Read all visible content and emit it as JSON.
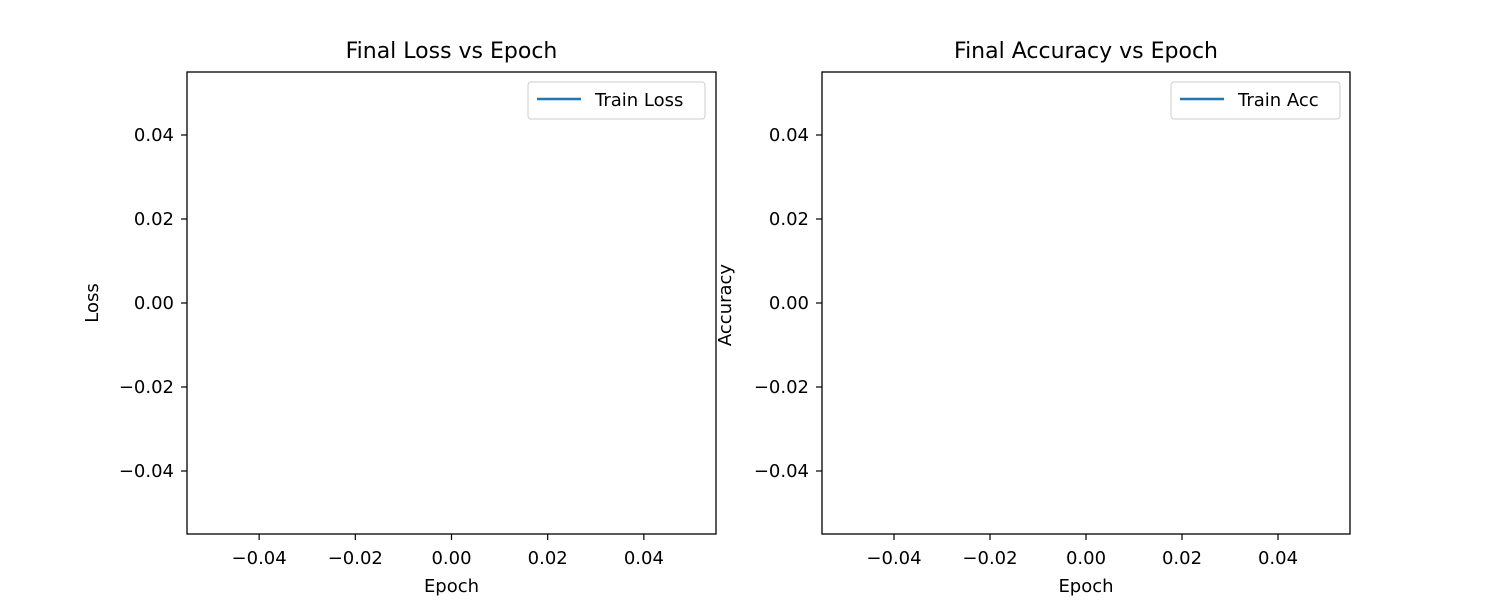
{
  "chart_data": [
    {
      "type": "line",
      "title": "Final Loss vs Epoch",
      "xlabel": "Epoch",
      "ylabel": "Loss",
      "xlim": [
        -0.055,
        0.055
      ],
      "ylim": [
        -0.055,
        0.055
      ],
      "x_ticks": [
        -0.04,
        -0.02,
        0.0,
        0.02,
        0.04
      ],
      "y_ticks": [
        -0.04,
        -0.02,
        0.0,
        0.02,
        0.04
      ],
      "x_tick_labels": [
        "−0.04",
        "−0.02",
        "0.00",
        "0.02",
        "0.04"
      ],
      "y_tick_labels": [
        "−0.04",
        "−0.02",
        "0.00",
        "0.02",
        "0.04"
      ],
      "grid": false,
      "legend_position": "top-right",
      "series": [
        {
          "name": "Train Loss",
          "color": "#1f77b4",
          "x": [],
          "y": []
        }
      ]
    },
    {
      "type": "line",
      "title": "Final Accuracy vs Epoch",
      "xlabel": "Epoch",
      "ylabel": "Accuracy",
      "xlim": [
        -0.055,
        0.055
      ],
      "ylim": [
        -0.055,
        0.055
      ],
      "x_ticks": [
        -0.04,
        -0.02,
        0.0,
        0.02,
        0.04
      ],
      "y_ticks": [
        -0.04,
        -0.02,
        0.0,
        0.02,
        0.04
      ],
      "x_tick_labels": [
        "−0.04",
        "−0.02",
        "0.00",
        "0.02",
        "0.04"
      ],
      "y_tick_labels": [
        "−0.04",
        "−0.02",
        "0.00",
        "0.02",
        "0.04"
      ],
      "grid": false,
      "legend_position": "top-right",
      "series": [
        {
          "name": "Train Acc",
          "color": "#1f77b4",
          "x": [],
          "y": []
        }
      ]
    }
  ]
}
